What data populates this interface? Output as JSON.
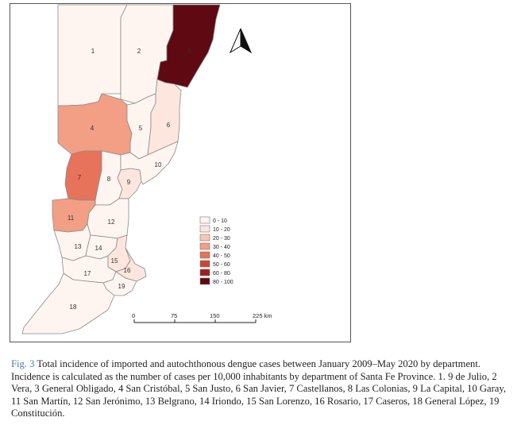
{
  "legend": {
    "bins": [
      {
        "label": "0 - 10",
        "color": "#fff5f0"
      },
      {
        "label": "10 - 20",
        "color": "#fde6dd"
      },
      {
        "label": "20 - 30",
        "color": "#f8c5b3"
      },
      {
        "label": "30 - 40",
        "color": "#f29f85"
      },
      {
        "label": "40 - 50",
        "color": "#e6735a"
      },
      {
        "label": "50 - 60",
        "color": "#cf4334"
      },
      {
        "label": "60 - 80",
        "color": "#a11d1f"
      },
      {
        "label": "80 - 100",
        "color": "#5f0913"
      }
    ]
  },
  "scale_bar": {
    "ticks": [
      "0",
      "75",
      "150",
      "225 km"
    ]
  },
  "north_arrow": {
    "icon": "north-arrow-icon"
  },
  "departments": [
    {
      "num": "1",
      "bin": 0
    },
    {
      "num": "2",
      "bin": 0
    },
    {
      "num": "3",
      "bin": 7
    },
    {
      "num": "4",
      "bin": 3
    },
    {
      "num": "5",
      "bin": 0
    },
    {
      "num": "6",
      "bin": 1
    },
    {
      "num": "7",
      "bin": 4
    },
    {
      "num": "8",
      "bin": 0
    },
    {
      "num": "9",
      "bin": 1
    },
    {
      "num": "10",
      "bin": 0
    },
    {
      "num": "11",
      "bin": 3
    },
    {
      "num": "12",
      "bin": 0
    },
    {
      "num": "13",
      "bin": 0
    },
    {
      "num": "14",
      "bin": 0
    },
    {
      "num": "15",
      "bin": 1
    },
    {
      "num": "16",
      "bin": 1
    },
    {
      "num": "17",
      "bin": 0
    },
    {
      "num": "18",
      "bin": 0
    },
    {
      "num": "19",
      "bin": 0
    }
  ],
  "caption": {
    "label": "Fig. 3",
    "text": "Total incidence of imported and autochthonous dengue cases between January 2009–May 2020 by department. Incidence is calculated as the number of cases per 10,000 inhabitants by department of Santa Fe Province. 1. 9 de Julio, 2 Vera, 3 General Obligado, 4 San Cristóbal, 5 San Justo, 6 San Javier, 7 Castellanos, 8 Las Colonias, 9 La Capital, 10 Garay, 11 San Martín, 12 San Jerónimo, 13 Belgrano, 14 Iriondo, 15 San Lorenzo, 16 Rosario, 17 Caseros, 18 General López, 19 Constitución."
  }
}
